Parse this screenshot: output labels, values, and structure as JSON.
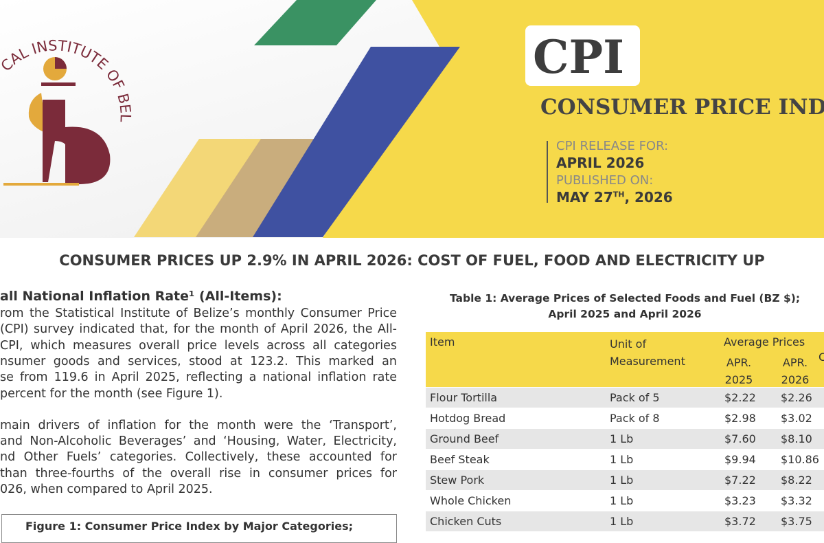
{
  "header": {
    "logo_text": "CAL INSTITUTE OF BELIZE",
    "badge": "CPI",
    "title": "CONSUMER PRICE INDE",
    "release_label": "CPI RELEASE FOR:",
    "release_value": "APRIL 2026",
    "published_label": "PUBLISHED ON:",
    "published_value": {
      "pre": "MAY 27",
      "sup": "TH",
      "post": ", 2026"
    }
  },
  "headline": "CONSUMER PRICES UP 2.9% IN APRIL 2026: COST OF FUEL, FOOD AND ELECTRICITY UP",
  "section": {
    "heading": "all National Inflation Rate¹ (All-Items):",
    "paragraphs": [
      [
        "rom the Statistical Institute of Belize’s monthly Consumer Price",
        "(CPI) survey indicated that, for the month of April 2026, the All-",
        "CPI, which measures overall price levels across all categories",
        "nsumer goods and services, stood at 123.2. This marked an",
        "se from 119.6 in April 2025, reflecting a national inflation rate",
        "percent for the month (see Figure 1)."
      ],
      [
        "main drivers of inflation for the month were the ‘Transport’,",
        "and Non-Alcoholic Beverages’ and ‘Housing, Water, Electricity,",
        "nd Other Fuels’ categories.  Collectively, these accounted for",
        "than three-fourths of the overall rise in consumer prices for",
        "026, when compared to April 2025."
      ]
    ],
    "figure_caption": "Figure 1: Consumer Price Index by Major Categories;"
  },
  "table": {
    "title": [
      "Table 1: Average Prices of Selected Foods and Fuel (BZ $);",
      "April 2025 and April 2026"
    ],
    "header": {
      "item": "Item",
      "unit": "Unit of Measurement",
      "avg": "Average Prices",
      "apr2025": "APR. 2025",
      "apr2026": "APR. 2026",
      "cut": "C"
    },
    "rows": [
      [
        "Flour Tortilla",
        "Pack of 5",
        "$2.22",
        "$2.26"
      ],
      [
        "Hotdog Bread",
        "Pack of 8",
        "$2.98",
        "$3.02"
      ],
      [
        "Ground Beef",
        "1 Lb",
        "$7.60",
        "$8.10"
      ],
      [
        "Beef Steak",
        "1 Lb",
        "$9.94",
        "$10.86"
      ],
      [
        "Stew Pork",
        "1 Lb",
        "$7.22",
        "$8.22"
      ],
      [
        "Whole Chicken",
        "1 Lb",
        "$3.23",
        "$3.32"
      ],
      [
        "Chicken Cuts",
        "1 Lb",
        "$3.72",
        "$3.75"
      ]
    ]
  }
}
